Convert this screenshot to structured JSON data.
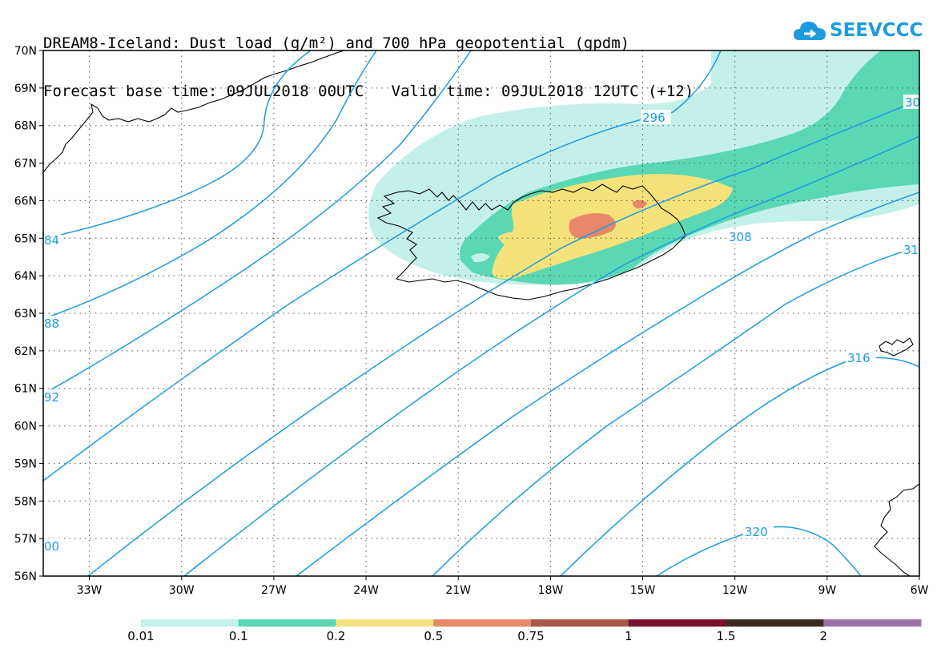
{
  "header": {
    "title_line1": "DREAM8-Iceland: Dust load (g/m²) and 700 hPa geopotential (gpdm)",
    "title_line2": "Forecast base time: 09JUL2018 00UTC   Valid time: 09JUL2018 12UTC (+12)"
  },
  "logo": {
    "text": "SEEVCCC",
    "icon": "cloud-icon",
    "color": "#1e9be0"
  },
  "map": {
    "lon_range": [
      -34.5,
      -6
    ],
    "lat_range": [
      56,
      70
    ],
    "lon_labels": [
      "33W",
      "30W",
      "27W",
      "24W",
      "21W",
      "18W",
      "15W",
      "12W",
      "9W",
      "6W"
    ],
    "lat_labels": [
      "70N",
      "69N",
      "68N",
      "67N",
      "66N",
      "65N",
      "64N",
      "63N",
      "62N",
      "61N",
      "60N",
      "59N",
      "58N",
      "57N",
      "56N"
    ],
    "grid": "dotted",
    "contour_color": "#1e9be0",
    "contour_labels": [
      "296",
      "30",
      "308",
      "31",
      "316",
      "320",
      "84",
      "88",
      "92",
      "00"
    ]
  },
  "colorbar": {
    "ticks": [
      "0.01",
      "0.1",
      "0.2",
      "0.5",
      "0.75",
      "1",
      "1.5",
      "2"
    ],
    "colors": [
      "#c4f0ea",
      "#5ad8b4",
      "#f5e27a",
      "#e8876a",
      "#a8574a",
      "#7a0f2e",
      "#3a2a20",
      "#9a72a8"
    ]
  }
}
